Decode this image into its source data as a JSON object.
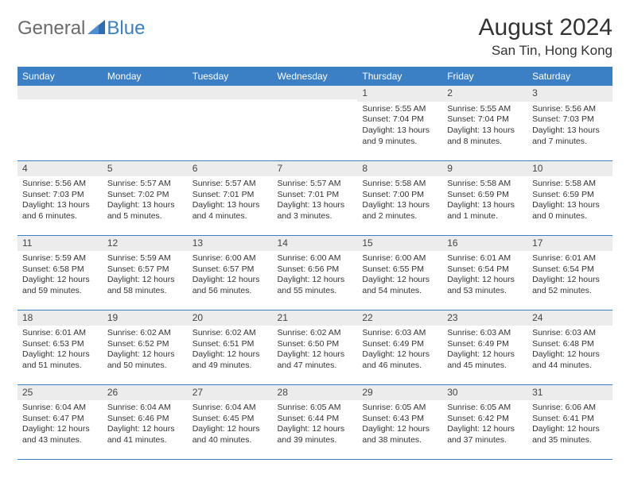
{
  "brand": {
    "part1": "General",
    "part2": "Blue"
  },
  "title": "August 2024",
  "location": "San Tin, Hong Kong",
  "header_bg": "#3b7fc4",
  "daynum_bg": "#ececec",
  "border_color": "#3b7fc4",
  "day_names": [
    "Sunday",
    "Monday",
    "Tuesday",
    "Wednesday",
    "Thursday",
    "Friday",
    "Saturday"
  ],
  "weeks": [
    [
      {
        "n": "",
        "sunrise": "",
        "sunset": "",
        "daylight": ""
      },
      {
        "n": "",
        "sunrise": "",
        "sunset": "",
        "daylight": ""
      },
      {
        "n": "",
        "sunrise": "",
        "sunset": "",
        "daylight": ""
      },
      {
        "n": "",
        "sunrise": "",
        "sunset": "",
        "daylight": ""
      },
      {
        "n": "1",
        "sunrise": "Sunrise: 5:55 AM",
        "sunset": "Sunset: 7:04 PM",
        "daylight": "Daylight: 13 hours and 9 minutes."
      },
      {
        "n": "2",
        "sunrise": "Sunrise: 5:55 AM",
        "sunset": "Sunset: 7:04 PM",
        "daylight": "Daylight: 13 hours and 8 minutes."
      },
      {
        "n": "3",
        "sunrise": "Sunrise: 5:56 AM",
        "sunset": "Sunset: 7:03 PM",
        "daylight": "Daylight: 13 hours and 7 minutes."
      }
    ],
    [
      {
        "n": "4",
        "sunrise": "Sunrise: 5:56 AM",
        "sunset": "Sunset: 7:03 PM",
        "daylight": "Daylight: 13 hours and 6 minutes."
      },
      {
        "n": "5",
        "sunrise": "Sunrise: 5:57 AM",
        "sunset": "Sunset: 7:02 PM",
        "daylight": "Daylight: 13 hours and 5 minutes."
      },
      {
        "n": "6",
        "sunrise": "Sunrise: 5:57 AM",
        "sunset": "Sunset: 7:01 PM",
        "daylight": "Daylight: 13 hours and 4 minutes."
      },
      {
        "n": "7",
        "sunrise": "Sunrise: 5:57 AM",
        "sunset": "Sunset: 7:01 PM",
        "daylight": "Daylight: 13 hours and 3 minutes."
      },
      {
        "n": "8",
        "sunrise": "Sunrise: 5:58 AM",
        "sunset": "Sunset: 7:00 PM",
        "daylight": "Daylight: 13 hours and 2 minutes."
      },
      {
        "n": "9",
        "sunrise": "Sunrise: 5:58 AM",
        "sunset": "Sunset: 6:59 PM",
        "daylight": "Daylight: 13 hours and 1 minute."
      },
      {
        "n": "10",
        "sunrise": "Sunrise: 5:58 AM",
        "sunset": "Sunset: 6:59 PM",
        "daylight": "Daylight: 13 hours and 0 minutes."
      }
    ],
    [
      {
        "n": "11",
        "sunrise": "Sunrise: 5:59 AM",
        "sunset": "Sunset: 6:58 PM",
        "daylight": "Daylight: 12 hours and 59 minutes."
      },
      {
        "n": "12",
        "sunrise": "Sunrise: 5:59 AM",
        "sunset": "Sunset: 6:57 PM",
        "daylight": "Daylight: 12 hours and 58 minutes."
      },
      {
        "n": "13",
        "sunrise": "Sunrise: 6:00 AM",
        "sunset": "Sunset: 6:57 PM",
        "daylight": "Daylight: 12 hours and 56 minutes."
      },
      {
        "n": "14",
        "sunrise": "Sunrise: 6:00 AM",
        "sunset": "Sunset: 6:56 PM",
        "daylight": "Daylight: 12 hours and 55 minutes."
      },
      {
        "n": "15",
        "sunrise": "Sunrise: 6:00 AM",
        "sunset": "Sunset: 6:55 PM",
        "daylight": "Daylight: 12 hours and 54 minutes."
      },
      {
        "n": "16",
        "sunrise": "Sunrise: 6:01 AM",
        "sunset": "Sunset: 6:54 PM",
        "daylight": "Daylight: 12 hours and 53 minutes."
      },
      {
        "n": "17",
        "sunrise": "Sunrise: 6:01 AM",
        "sunset": "Sunset: 6:54 PM",
        "daylight": "Daylight: 12 hours and 52 minutes."
      }
    ],
    [
      {
        "n": "18",
        "sunrise": "Sunrise: 6:01 AM",
        "sunset": "Sunset: 6:53 PM",
        "daylight": "Daylight: 12 hours and 51 minutes."
      },
      {
        "n": "19",
        "sunrise": "Sunrise: 6:02 AM",
        "sunset": "Sunset: 6:52 PM",
        "daylight": "Daylight: 12 hours and 50 minutes."
      },
      {
        "n": "20",
        "sunrise": "Sunrise: 6:02 AM",
        "sunset": "Sunset: 6:51 PM",
        "daylight": "Daylight: 12 hours and 49 minutes."
      },
      {
        "n": "21",
        "sunrise": "Sunrise: 6:02 AM",
        "sunset": "Sunset: 6:50 PM",
        "daylight": "Daylight: 12 hours and 47 minutes."
      },
      {
        "n": "22",
        "sunrise": "Sunrise: 6:03 AM",
        "sunset": "Sunset: 6:49 PM",
        "daylight": "Daylight: 12 hours and 46 minutes."
      },
      {
        "n": "23",
        "sunrise": "Sunrise: 6:03 AM",
        "sunset": "Sunset: 6:49 PM",
        "daylight": "Daylight: 12 hours and 45 minutes."
      },
      {
        "n": "24",
        "sunrise": "Sunrise: 6:03 AM",
        "sunset": "Sunset: 6:48 PM",
        "daylight": "Daylight: 12 hours and 44 minutes."
      }
    ],
    [
      {
        "n": "25",
        "sunrise": "Sunrise: 6:04 AM",
        "sunset": "Sunset: 6:47 PM",
        "daylight": "Daylight: 12 hours and 43 minutes."
      },
      {
        "n": "26",
        "sunrise": "Sunrise: 6:04 AM",
        "sunset": "Sunset: 6:46 PM",
        "daylight": "Daylight: 12 hours and 41 minutes."
      },
      {
        "n": "27",
        "sunrise": "Sunrise: 6:04 AM",
        "sunset": "Sunset: 6:45 PM",
        "daylight": "Daylight: 12 hours and 40 minutes."
      },
      {
        "n": "28",
        "sunrise": "Sunrise: 6:05 AM",
        "sunset": "Sunset: 6:44 PM",
        "daylight": "Daylight: 12 hours and 39 minutes."
      },
      {
        "n": "29",
        "sunrise": "Sunrise: 6:05 AM",
        "sunset": "Sunset: 6:43 PM",
        "daylight": "Daylight: 12 hours and 38 minutes."
      },
      {
        "n": "30",
        "sunrise": "Sunrise: 6:05 AM",
        "sunset": "Sunset: 6:42 PM",
        "daylight": "Daylight: 12 hours and 37 minutes."
      },
      {
        "n": "31",
        "sunrise": "Sunrise: 6:06 AM",
        "sunset": "Sunset: 6:41 PM",
        "daylight": "Daylight: 12 hours and 35 minutes."
      }
    ]
  ]
}
